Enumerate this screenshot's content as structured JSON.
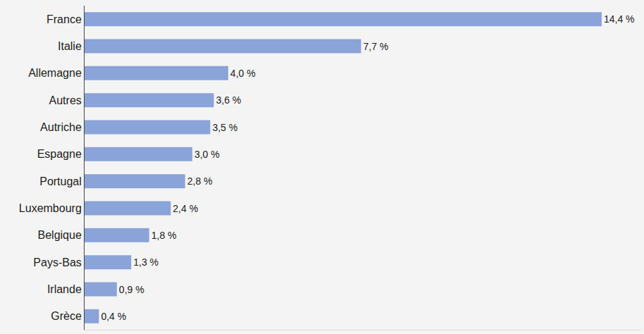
{
  "chart_data": {
    "type": "bar",
    "orientation": "horizontal",
    "categories": [
      "France",
      "Italie",
      "Allemagne",
      "Autres",
      "Autriche",
      "Espagne",
      "Portugal",
      "Luxembourg",
      "Belgique",
      "Pays-Bas",
      "Irlande",
      "Grèce"
    ],
    "values": [
      14.4,
      7.7,
      4.0,
      3.6,
      3.5,
      3.0,
      2.8,
      2.4,
      1.8,
      1.3,
      0.9,
      0.4
    ],
    "value_labels": [
      "14,4 %",
      "7,7 %",
      "4,0 %",
      "3,6 %",
      "3,5 %",
      "3,0 %",
      "2,8 %",
      "2,4 %",
      "1,8 %",
      "1,3 %",
      "0,9 %",
      "0,4 %"
    ],
    "color": "#8aa3d8",
    "xlim": [
      0,
      15.5
    ],
    "grid": false,
    "data_labels": true,
    "tick_labels": "y"
  }
}
